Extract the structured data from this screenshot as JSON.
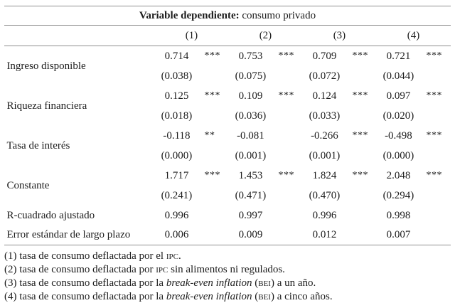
{
  "table": {
    "title_bold": "Variable dependiente:",
    "title_normal": " consumo privado",
    "col_headers": [
      "(1)",
      "(2)",
      "(3)",
      "(4)"
    ],
    "coef_rows": [
      {
        "label": "Ingreso disponible",
        "values": [
          "0.714",
          "0.753",
          "0.709",
          "0.721"
        ],
        "stars": [
          "***",
          "***",
          "***",
          "***"
        ],
        "se": [
          "(0.038)",
          "(0.075)",
          "(0.072)",
          "(0.044)"
        ]
      },
      {
        "label": "Riqueza financiera",
        "values": [
          "0.125",
          "0.109",
          "0.124",
          "0.097"
        ],
        "stars": [
          "***",
          "***",
          "***",
          "***"
        ],
        "se": [
          "(0.018)",
          "(0.036)",
          "(0.033)",
          "(0.020)"
        ]
      },
      {
        "label": "Tasa de interés",
        "values": [
          "-0.118",
          "-0.081",
          "-0.266",
          "-0.498"
        ],
        "stars": [
          "**",
          "",
          "***",
          "***"
        ],
        "se": [
          "(0.000)",
          "(0.001)",
          "(0.001)",
          "(0.000)"
        ]
      },
      {
        "label": "Constante",
        "values": [
          "1.717",
          "1.453",
          "1.824",
          "2.048"
        ],
        "stars": [
          "***",
          "***",
          "***",
          "***"
        ],
        "se": [
          "(0.241)",
          "(0.471)",
          "(0.470)",
          "(0.294)"
        ]
      }
    ],
    "stat_rows": [
      {
        "label": "R-cuadrado ajustado",
        "values": [
          "0.996",
          "0.997",
          "0.996",
          "0.998"
        ]
      },
      {
        "label": "Error estándar de largo plazo",
        "values": [
          "0.006",
          "0.009",
          "0.012",
          "0.007"
        ]
      }
    ]
  },
  "footnotes": [
    {
      "pre": "(1) tasa de consumo deflactada por el ",
      "italic": "",
      "mid": "",
      "sc": "ipc",
      "post": "."
    },
    {
      "pre": "(2) tasa de consumo deflactada por ",
      "italic": "",
      "mid": "",
      "sc": "ipc",
      "post": " sin alimentos ni regulados."
    },
    {
      "pre": "(3) tasa de consumo deflactada por la ",
      "italic": "break-even inflation",
      "mid": " (",
      "sc": "bei",
      "post": ") a un año."
    },
    {
      "pre": "(4) tasa de consumo deflactada por la ",
      "italic": "break-even inflation",
      "mid": " (",
      "sc": "bei",
      "post": ") a cinco años."
    }
  ]
}
